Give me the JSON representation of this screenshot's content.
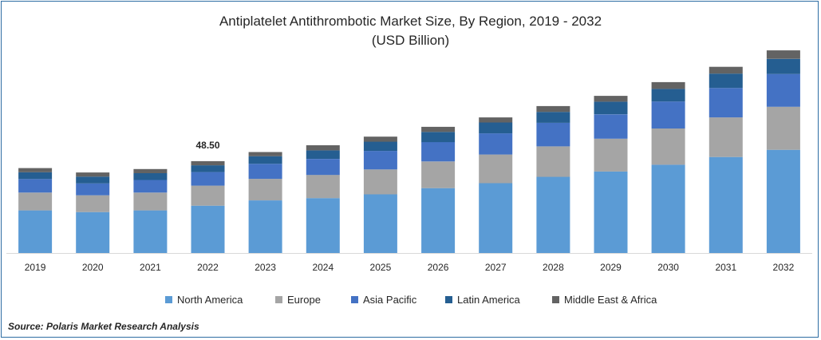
{
  "chart_data": {
    "type": "bar",
    "stacked": true,
    "title": "Antiplatelet Antithrombotic Market Size, By Region, 2019 - 2032",
    "subtitle": "(USD Billion)",
    "categories": [
      "2019",
      "2020",
      "2021",
      "2022",
      "2023",
      "2024",
      "2025",
      "2026",
      "2027",
      "2028",
      "2029",
      "2030",
      "2031",
      "2032"
    ],
    "series": [
      {
        "name": "North America",
        "color": "#5b9bd5",
        "values": [
          22.6,
          21.7,
          22.6,
          25.1,
          27.9,
          29.1,
          31.1,
          34.4,
          37.0,
          40.4,
          43.2,
          46.8,
          50.9,
          54.7
        ]
      },
      {
        "name": "Europe",
        "color": "#a5a5a5",
        "values": [
          9.4,
          8.9,
          9.4,
          10.6,
          11.4,
          12.3,
          13.2,
          14.1,
          15.2,
          16.1,
          17.4,
          19.2,
          21.0,
          22.8
        ]
      },
      {
        "name": "Asia Pacific",
        "color": "#4472c4",
        "values": [
          7.2,
          6.3,
          6.7,
          7.2,
          8.0,
          8.5,
          9.8,
          10.3,
          11.2,
          12.5,
          12.9,
          14.3,
          15.6,
          17.4
        ]
      },
      {
        "name": "Latin America",
        "color": "#255e91",
        "values": [
          3.6,
          3.6,
          3.6,
          3.6,
          4.0,
          4.5,
          4.9,
          5.4,
          5.8,
          5.8,
          6.7,
          6.7,
          7.6,
          8.0
        ]
      },
      {
        "name": "Middle East & Africa",
        "color": "#636363",
        "values": [
          2.2,
          2.2,
          2.2,
          2.2,
          2.2,
          2.7,
          2.7,
          2.7,
          2.7,
          3.1,
          3.1,
          3.6,
          3.6,
          4.5
        ]
      }
    ],
    "data_labels": [
      {
        "category": "2022",
        "text": "48.50"
      }
    ],
    "ylim": [
      0,
      110
    ],
    "xlabel": "",
    "ylabel": "",
    "grid": false,
    "legend_position": "bottom"
  },
  "source_text": "Source: Polaris  Market Research Analysis"
}
